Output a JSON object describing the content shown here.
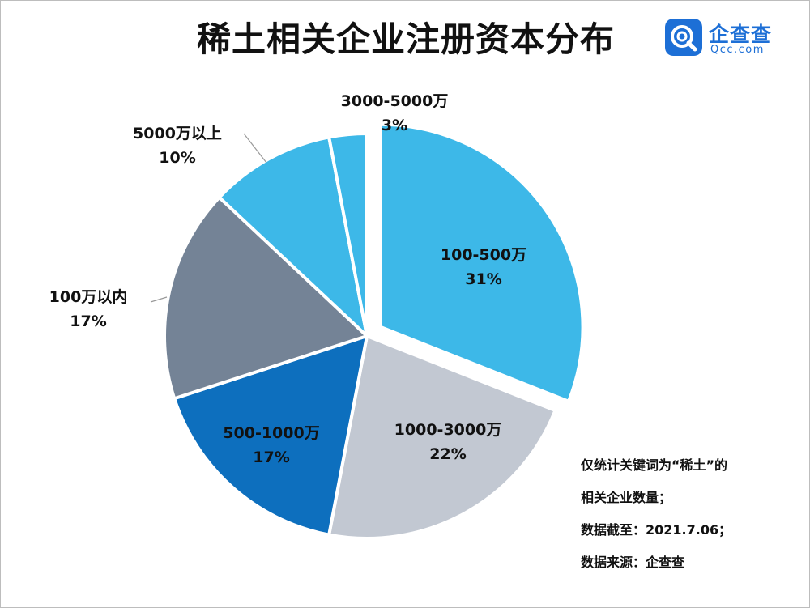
{
  "title": "稀土相关企业注册资本分布",
  "brand": {
    "name": "企查查",
    "domain": "Qcc.com",
    "color": "#1d6fd6"
  },
  "notes": [
    "仅统计关键词为“稀土”的",
    "相关企业数量；",
    "数据截至：2021.7.06；",
    "数据来源：企查查"
  ],
  "chart_data": {
    "type": "pie",
    "title": "稀土相关企业注册资本分布",
    "slices": [
      {
        "label": "100-500万",
        "value": 31,
        "pct_label": "31%",
        "color": "#3db8e8",
        "text_color": "#111111",
        "exploded": true
      },
      {
        "label": "1000-3000万",
        "value": 22,
        "pct_label": "22%",
        "color": "#c2c8d2",
        "text_color": "#111111",
        "exploded": false
      },
      {
        "label": "500-1000万",
        "value": 17,
        "pct_label": "17%",
        "color": "#0d6fbe",
        "text_color": "#111111",
        "exploded": false
      },
      {
        "label": "100万以内",
        "value": 17,
        "pct_label": "17%",
        "color": "#748396",
        "text_color": "#111111",
        "exploded": false
      },
      {
        "label": "5000万以上",
        "value": 10,
        "pct_label": "10%",
        "color": "#3db8e8",
        "text_color": "#111111",
        "exploded": false
      },
      {
        "label": "3000-5000万",
        "value": 3,
        "pct_label": "3%",
        "color": "#3db8e8",
        "text_color": "#111111",
        "exploded": false
      }
    ]
  }
}
